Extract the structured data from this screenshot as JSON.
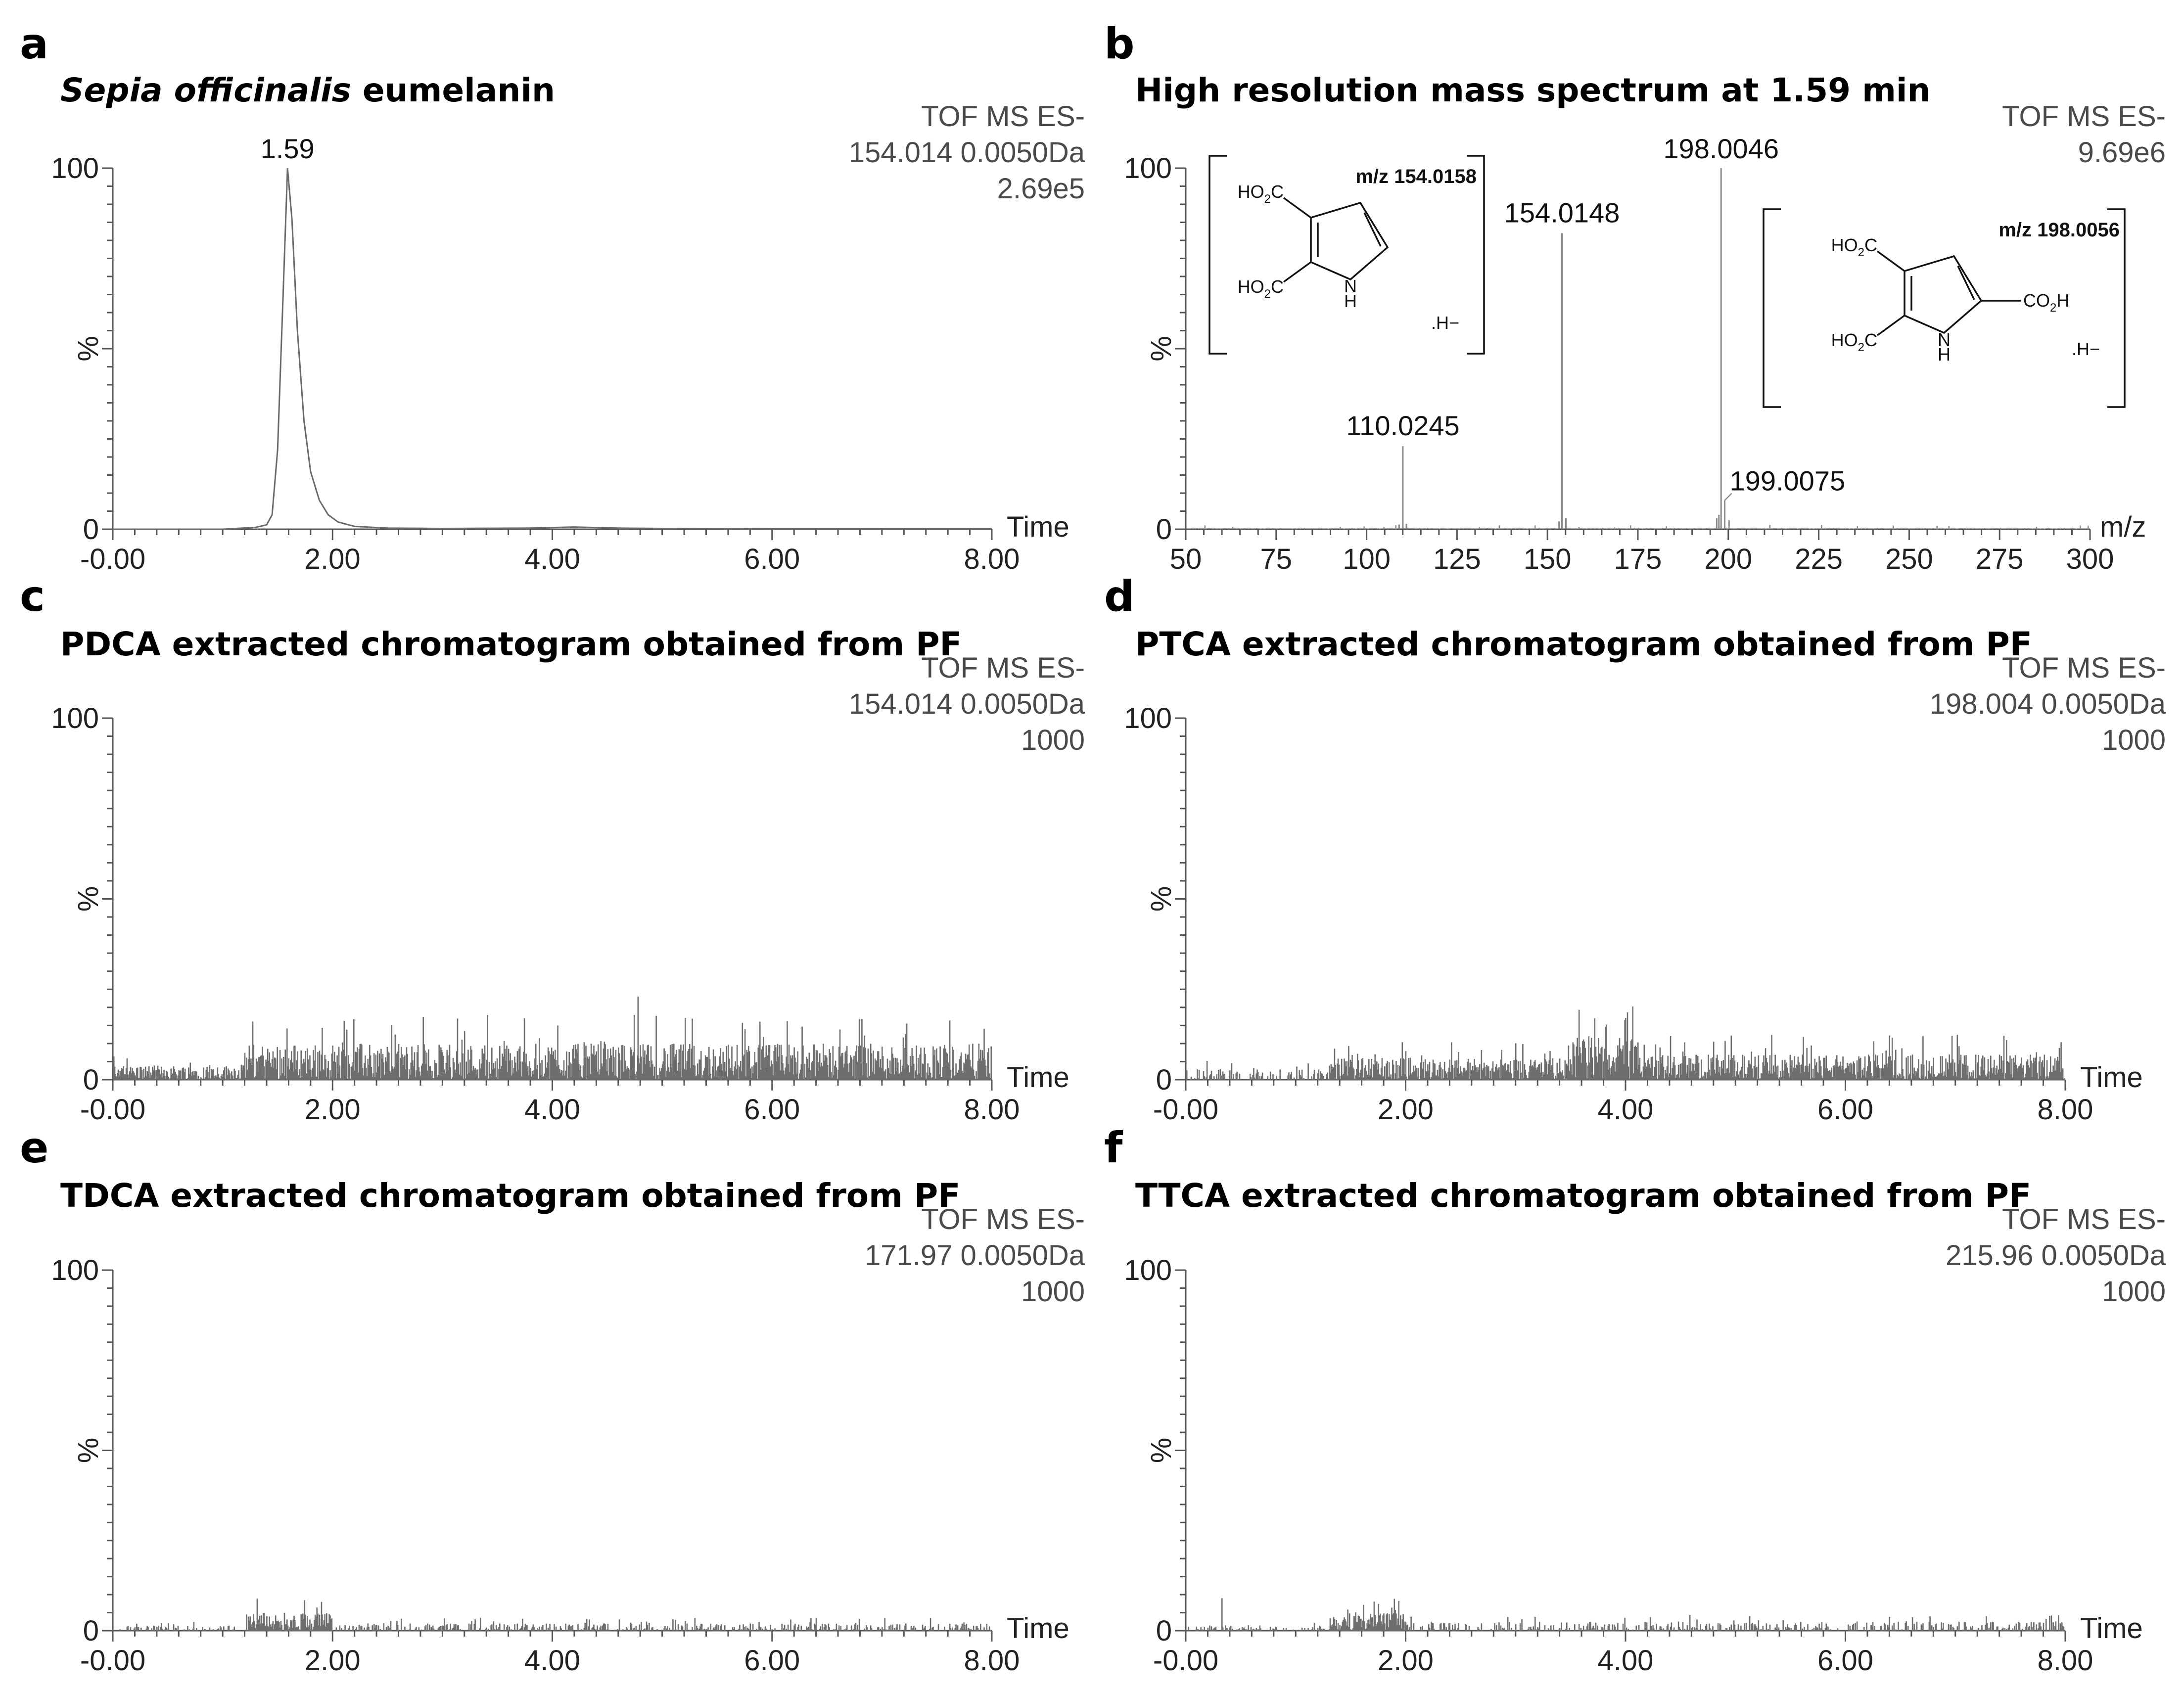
{
  "panels": [
    {
      "id": "a",
      "letter": "a",
      "title_italic": "Sepia officinalis",
      "title": " eumelanin",
      "info": [
        "TOF MS ES-",
        "154.014 0.0050Da",
        "2.69e5"
      ],
      "chart_data": {
        "type": "line",
        "title": "Sepia officinalis eumelanin",
        "xlabel": "Time",
        "ylabel": "%",
        "xlim": [
          0,
          8
        ],
        "ylim": [
          0,
          100
        ],
        "x_ticks": [
          "-0.00",
          "2.00",
          "4.00",
          "6.00",
          "8.00"
        ],
        "y_ticks": [
          "0",
          "100"
        ],
        "series": [
          {
            "name": "154.014 0.0050Da",
            "x": [
              0,
              1.0,
              1.3,
              1.4,
              1.45,
              1.5,
              1.55,
              1.59,
              1.63,
              1.68,
              1.74,
              1.8,
              1.88,
              1.96,
              2.05,
              2.2,
              2.5,
              3.0,
              3.8,
              4.2,
              4.6,
              5.0,
              6.0,
              7.0,
              8.0
            ],
            "y": [
              0,
              0,
              0.5,
              1.2,
              4,
              22,
              65,
              100,
              86,
              55,
              30,
              16,
              8,
              4,
              2,
              0.8,
              0.3,
              0.2,
              0.3,
              0.6,
              0.3,
              0.2,
              0.1,
              0.1,
              0.1
            ]
          }
        ],
        "annotations": [
          {
            "x": 1.59,
            "y": 100,
            "text": "1.59"
          }
        ]
      }
    },
    {
      "id": "b",
      "letter": "b",
      "title": "High resolution mass spectrum at 1.59 min",
      "info": [
        "TOF MS ES-",
        "9.69e6"
      ],
      "structure_left": {
        "mz_label": "m/z 154.0158",
        "groups": [
          "HO2C",
          "HO2C",
          "N",
          "H",
          ".H−"
        ]
      },
      "structure_right": {
        "mz_label": "m/z 198.0056",
        "groups": [
          "HO2C",
          "HO2C",
          "CO2H",
          "N",
          "H",
          ".H−"
        ]
      },
      "chart_data": {
        "type": "bar",
        "title": "High resolution mass spectrum at 1.59 min",
        "xlabel": "m/z",
        "ylabel": "%",
        "xlim": [
          50,
          300
        ],
        "ylim": [
          0,
          100
        ],
        "x_ticks": [
          "50",
          "75",
          "100",
          "125",
          "150",
          "175",
          "200",
          "225",
          "250",
          "275",
          "300"
        ],
        "y_ticks": [
          "0",
          "100"
        ],
        "peaks": [
          {
            "mz": 110.0245,
            "rel": 23
          },
          {
            "mz": 154.0148,
            "rel": 82
          },
          {
            "mz": 198.0046,
            "rel": 100
          },
          {
            "mz": 199.0075,
            "rel": 8
          }
        ],
        "peak_labels": [
          {
            "mz": 198.0046,
            "text": "198.0046"
          },
          {
            "mz": 154.0148,
            "text": "154.0148"
          },
          {
            "mz": 110.0245,
            "text": "110.0245"
          },
          {
            "mz": 199.0075,
            "text": "199.0075"
          }
        ]
      }
    },
    {
      "id": "c",
      "letter": "c",
      "title": "PDCA extracted chromatogram obtained from PF",
      "info": [
        "TOF MS ES-",
        "154.014 0.0050Da",
        "1000"
      ],
      "chart_data": {
        "type": "line",
        "title": "PDCA extracted chromatogram obtained from PF",
        "xlabel": "Time",
        "ylabel": "%",
        "xlim": [
          0,
          8
        ],
        "ylim": [
          0,
          100
        ],
        "x_ticks": [
          "-0.00",
          "2.00",
          "4.00",
          "6.00",
          "8.00"
        ],
        "y_ticks": [
          "0",
          "100"
        ],
        "noise": {
          "segments": [
            [
              0,
              1.2,
              4
            ],
            [
              1.2,
              8.0,
              10
            ]
          ],
          "max_peak": {
            "x": 4.78,
            "y": 23
          }
        }
      }
    },
    {
      "id": "d",
      "letter": "d",
      "title": "PTCA extracted chromatogram obtained from PF",
      "info": [
        "TOF MS ES-",
        "198.004 0.0050Da",
        "1000"
      ],
      "chart_data": {
        "type": "line",
        "title": "PTCA extracted chromatogram obtained from PF",
        "xlabel": "Time",
        "ylabel": "%",
        "xlim": [
          0,
          8
        ],
        "ylim": [
          0,
          100
        ],
        "x_ticks": [
          "-0.00",
          "2.00",
          "4.00",
          "6.00",
          "8.00"
        ],
        "y_ticks": [
          "0",
          "100"
        ],
        "noise": {
          "segments": [
            [
              0,
              1.3,
              3
            ],
            [
              1.3,
              3.5,
              6
            ],
            [
              3.5,
              4.1,
              12
            ],
            [
              4.1,
              8.0,
              7
            ]
          ],
          "max_peak": {
            "x": 3.72,
            "y": 17
          }
        }
      }
    },
    {
      "id": "e",
      "letter": "e",
      "title": "TDCA extracted chromatogram obtained from PF",
      "info": [
        "TOF MS ES-",
        "171.97 0.0050Da",
        "1000"
      ],
      "chart_data": {
        "type": "line",
        "title": "TDCA extracted chromatogram obtained from PF",
        "xlabel": "Time",
        "ylabel": "%",
        "xlim": [
          0,
          8
        ],
        "ylim": [
          0,
          100
        ],
        "x_ticks": [
          "-0.00",
          "2.00",
          "4.00",
          "6.00",
          "8.00"
        ],
        "y_ticks": [
          "0",
          "100"
        ],
        "noise": {
          "segments": [
            [
              0,
              1.2,
              1.5
            ],
            [
              1.2,
              2.0,
              5
            ],
            [
              2.0,
              8.0,
              2
            ]
          ],
          "max_peak": {
            "x": 1.9,
            "y": 8
          }
        }
      }
    },
    {
      "id": "f",
      "letter": "f",
      "title": "TTCA extracted chromatogram obtained from PF",
      "info": [
        "TOF MS ES-",
        "215.96 0.0050Da",
        "1000"
      ],
      "chart_data": {
        "type": "line",
        "title": "TTCA extracted chromatogram obtained from PF",
        "xlabel": "Time",
        "ylabel": "%",
        "xlim": [
          0,
          8
        ],
        "ylim": [
          0,
          100
        ],
        "x_ticks": [
          "-0.00",
          "2.00",
          "4.00",
          "6.00",
          "8.00"
        ],
        "y_ticks": [
          "0",
          "100"
        ],
        "noise": {
          "segments": [
            [
              0,
              1.3,
              1.5
            ],
            [
              1.3,
              2.0,
              5
            ],
            [
              2.0,
              8.0,
              2.5
            ]
          ],
          "max_peak": {
            "x": 0.33,
            "y": 9
          }
        }
      }
    }
  ]
}
